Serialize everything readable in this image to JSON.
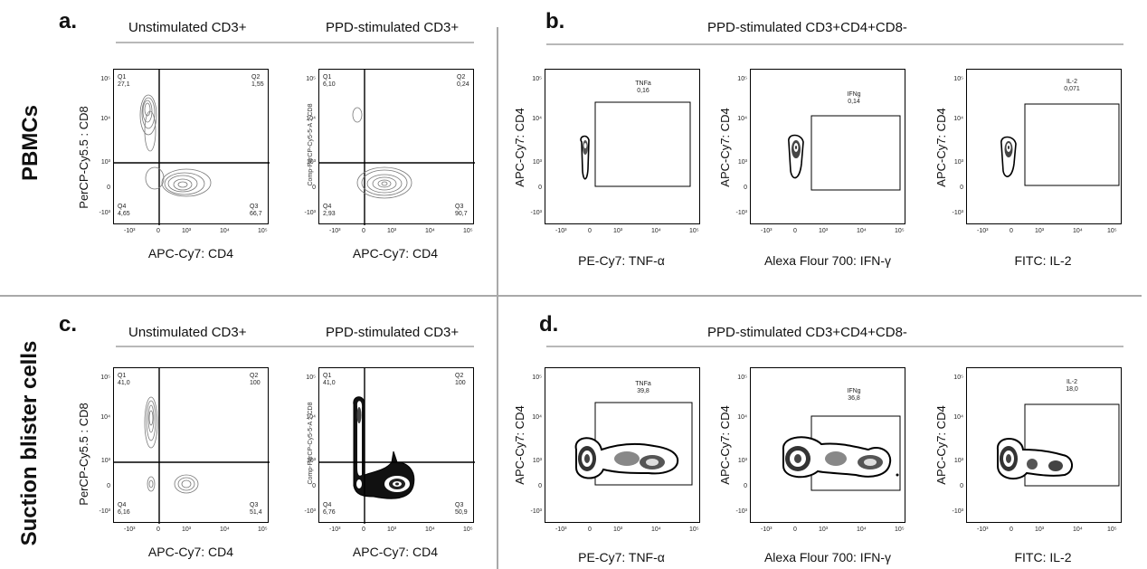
{
  "panels": {
    "a": {
      "letter": "a.",
      "title_left": "Unstimulated CD3+",
      "title_right": "PPD-stimulated CD3+"
    },
    "b": {
      "letter": "b.",
      "title": "PPD-stimulated CD3+CD4+CD8-"
    },
    "c": {
      "letter": "c.",
      "title_left": "Unstimulated CD3+",
      "title_right": "PPD-stimulated CD3+"
    },
    "d": {
      "letter": "d.",
      "title": "PPD-stimulated CD3+CD4+CD8-"
    }
  },
  "row_labels": {
    "top": "PBMCs",
    "bottom": "Suction blister cells"
  },
  "axis_ticks": {
    "x": [
      "-10³",
      "0",
      "10³",
      "10⁴",
      "10⁵"
    ],
    "y": [
      "10⁵",
      "10⁴",
      "10³",
      "0",
      "-10³"
    ]
  },
  "labels": {
    "cd4_x": "APC-Cy7: CD4",
    "cd8_y": "PerCP-Cy5.5 : CD8",
    "cd8_y_comp": "Comp-PerCP-Cy5-5-A :: CD8",
    "cd4_y": "APC-Cy7: CD4",
    "tnf_x": "PE-Cy7: TNF-α",
    "ifn_x": "Alexa Flour 700: IFN-γ",
    "il2_x": "FITC: IL-2"
  },
  "quadrant_plots": {
    "a_unstim": {
      "Q1": "Q1\n27,1",
      "Q2": "Q2\n1,55",
      "Q3": "Q3\n66,7",
      "Q4": "Q4\n4,65"
    },
    "a_stim": {
      "Q1": "Q1\n6,10",
      "Q2": "Q2\n0,24",
      "Q3": "Q3\n90,7",
      "Q4": "Q4\n2,93"
    },
    "c_unstim": {
      "Q1": "Q1\n41,0",
      "Q2": "Q2\n100",
      "Q3": "Q3\n51,4",
      "Q4": "Q4\n6,16"
    },
    "c_stim": {
      "Q1": "Q1\n41,0",
      "Q2": "Q2\n100",
      "Q3": "Q3\n50,9",
      "Q4": "Q4\n6,76"
    }
  },
  "gate_plots": {
    "b_tnf": {
      "name": "TNFa",
      "value": "0,16"
    },
    "b_ifn": {
      "name": "IFNg",
      "value": "0,14"
    },
    "b_il2": {
      "name": "IL-2",
      "value": "0,071"
    },
    "d_tnf": {
      "name": "TNFa",
      "value": "39,8"
    },
    "d_ifn": {
      "name": "IFNg",
      "value": "36,8"
    },
    "d_il2": {
      "name": "IL-2",
      "value": "18,0"
    }
  }
}
